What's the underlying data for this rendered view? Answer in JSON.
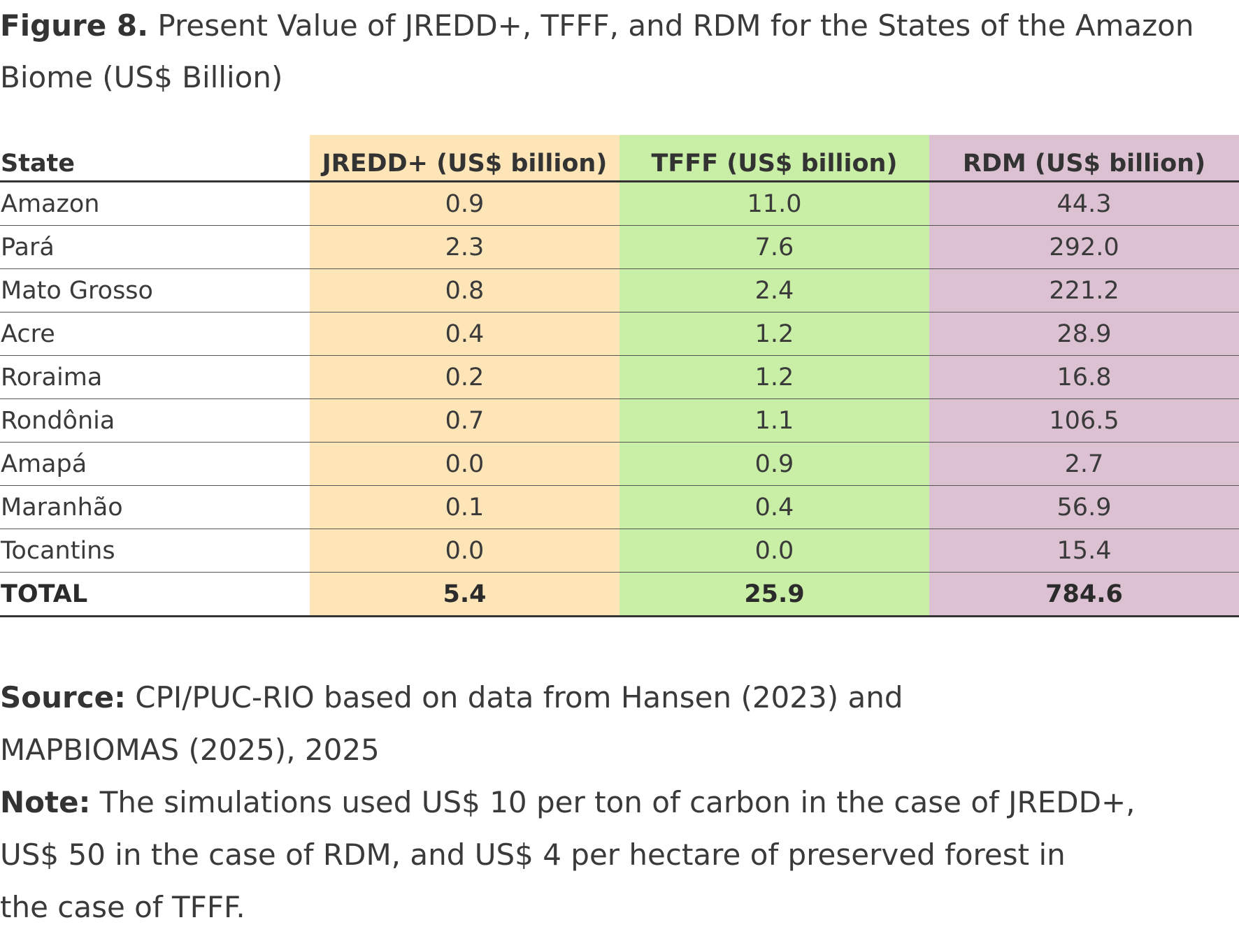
{
  "figure": {
    "label": "Figure 8.",
    "title_line1": "Present Value of JREDD+, TFFF, and RDM for the States of the Amazon",
    "title_line2": "Biome (US$ Billion)"
  },
  "table": {
    "headers": [
      "State",
      "JREDD+ (US$ billion)",
      "TFFF (US$ billion)",
      "RDM (US$ billion)"
    ],
    "rows": [
      [
        "Amazon",
        "0.9",
        "11.0",
        "44.3"
      ],
      [
        "Pará",
        "2.3",
        "7.6",
        "292.0"
      ],
      [
        "Mato Grosso",
        "0.8",
        "2.4",
        "221.2"
      ],
      [
        "Acre",
        "0.4",
        "1.2",
        "28.9"
      ],
      [
        "Roraima",
        "0.2",
        "1.2",
        "16.8"
      ],
      [
        "Rondônia",
        "0.7",
        "1.1",
        "106.5"
      ],
      [
        "Amapá",
        "0.0",
        "0.9",
        "2.7"
      ],
      [
        "Maranhão",
        "0.1",
        "0.4",
        "56.9"
      ],
      [
        "Tocantins",
        "0.0",
        "0.0",
        "15.4"
      ]
    ],
    "total": [
      "TOTAL",
      "5.4",
      "25.9",
      "784.6"
    ],
    "column_colors": [
      "#ffffff",
      "#fde5b8",
      "#c9eea6",
      "#dbc1d2"
    ]
  },
  "source": {
    "label": "Source:",
    "line1": "CPI/PUC-RIO based on data from Hansen (2023) and",
    "line2": "MAPBIOMAS (2025), 2025"
  },
  "note": {
    "label": "Note:",
    "line1": "The simulations used US$ 10 per ton of carbon in the case of JREDD+,",
    "line2": "US$ 50 in the case of RDM, and US$ 4 per hectare of preserved forest in",
    "line3": "the case of TFFF."
  }
}
